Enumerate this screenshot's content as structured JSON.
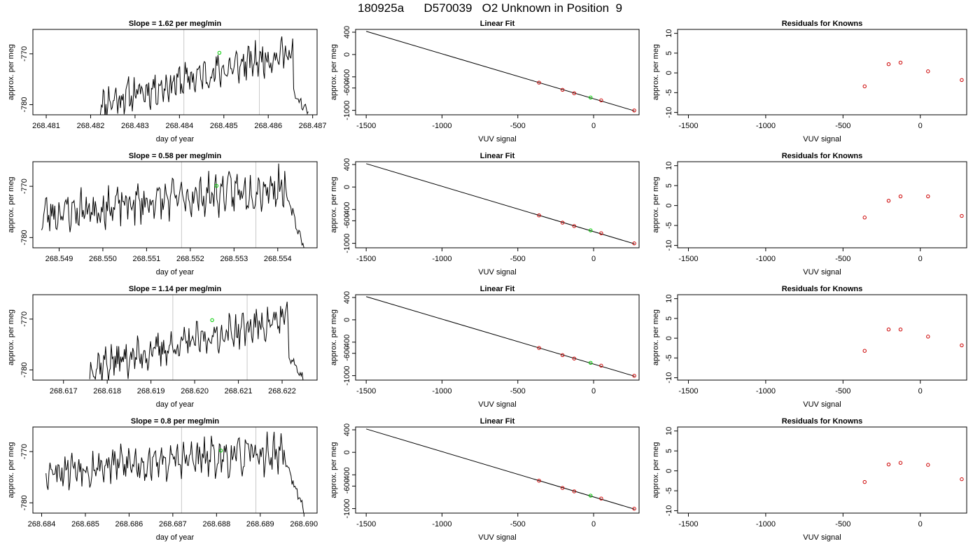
{
  "page": {
    "title": "180925a      D570039   O2 Unknown in Position  9"
  },
  "styles": {
    "trace_color": "#000000",
    "marker_unknown": "#00cc00",
    "marker_known": "#cc0000",
    "vline_color": "#c8c8c8"
  },
  "chart_data": [
    {
      "type": "line",
      "panel": "time-series",
      "row": 1,
      "title": "Slope =  1.62  per meg/min",
      "xlabel": "day of year",
      "ylabel": "approx. per meg",
      "xlim": [
        268.4807,
        268.4871
      ],
      "ylim": [
        -782,
        -765.2
      ],
      "xticks": [
        "268.481",
        "268.482",
        "268.483",
        "268.484",
        "268.485",
        "268.486",
        "268.487"
      ],
      "xtick_values": [
        268.481,
        268.482,
        268.483,
        268.484,
        268.485,
        268.486,
        268.487
      ],
      "yticks": [
        "-780",
        "-770"
      ],
      "ytick_values": [
        -780,
        -770
      ],
      "vlines": [
        268.4841,
        268.4858
      ],
      "marker": {
        "x": 268.4849,
        "y": -769.8
      },
      "trace": {
        "x_start": 268.4822,
        "x_end": 268.4869,
        "n": 230,
        "base_start": -779.8,
        "base_end": -768.6,
        "amp": 2.6,
        "seed": 11,
        "tail_start": -778.0,
        "tail_end": -781.5
      }
    },
    {
      "type": "line",
      "panel": "linear-fit",
      "row": 1,
      "title": "Linear Fit",
      "xlabel": "VUV signal",
      "ylabel": "approx. per meg",
      "xlim": [
        -1570,
        300
      ],
      "ylim": [
        -1080,
        450
      ],
      "xticks": [
        "-1500",
        "-1000",
        "-500",
        "0"
      ],
      "xtick_values": [
        -1500,
        -1000,
        -500,
        0
      ],
      "yticks": [
        "-1000",
        "-600",
        "-400",
        "0",
        "400"
      ],
      "ytick_values": [
        -1000,
        -600,
        -400,
        0,
        400
      ],
      "line": {
        "x": [
          -1500,
          270
        ],
        "y": [
          415,
          -1010
        ]
      },
      "knowns": {
        "x": [
          -360,
          -205,
          -128,
          50,
          268
        ],
        "y": [
          -504,
          -633,
          -694,
          -821,
          -1002
        ]
      },
      "unknown": {
        "x": [
          -20
        ],
        "y": [
          -770
        ]
      }
    },
    {
      "type": "scatter",
      "panel": "residuals",
      "row": 1,
      "title": "Residuals for Knowns",
      "xlabel": "VUV signal",
      "ylabel": "approx. per meg",
      "xlim": [
        -1570,
        300
      ],
      "ylim": [
        -10.6,
        11
      ],
      "xticks": [
        "-1500",
        "-1000",
        "-500",
        "0"
      ],
      "xtick_values": [
        -1500,
        -1000,
        -500,
        0
      ],
      "yticks": [
        "-10",
        "-5",
        "0",
        "5",
        "10"
      ],
      "ytick_values": [
        -10,
        -5,
        0,
        5,
        10
      ],
      "points": {
        "x": [
          -360,
          -205,
          -128,
          50,
          268
        ],
        "y": [
          -3.4,
          2.2,
          2.6,
          0.4,
          -1.8
        ]
      }
    },
    {
      "type": "line",
      "panel": "time-series",
      "row": 2,
      "title": "Slope =  0.58  per meg/min",
      "xlabel": "day of year",
      "ylabel": "approx. per meg",
      "xlim": [
        268.5484,
        268.5549
      ],
      "ylim": [
        -782,
        -765.2
      ],
      "xticks": [
        "268.549",
        "268.550",
        "268.551",
        "268.552",
        "268.553",
        "268.554"
      ],
      "xtick_values": [
        268.549,
        268.55,
        268.551,
        268.552,
        268.553,
        268.554
      ],
      "yticks": [
        "-780",
        "-770"
      ],
      "ytick_values": [
        -780,
        -770
      ],
      "vlines": [
        268.5518,
        268.5535
      ],
      "marker": {
        "x": 268.5526,
        "y": -769.9
      },
      "trace": {
        "x_start": 268.5486,
        "x_end": 268.5546,
        "n": 260,
        "base_start": -775.5,
        "base_end": -769.5,
        "amp": 3.0,
        "seed": 23,
        "tail_start": -771.5,
        "tail_end": -781.8
      }
    },
    {
      "type": "line",
      "panel": "linear-fit",
      "row": 2,
      "title": "Linear Fit",
      "xlabel": "VUV signal",
      "ylabel": "approx. per meg",
      "xlim": [
        -1570,
        300
      ],
      "ylim": [
        -1080,
        450
      ],
      "xticks": [
        "-1500",
        "-1000",
        "-500",
        "0"
      ],
      "xtick_values": [
        -1500,
        -1000,
        -500,
        0
      ],
      "yticks": [
        "-1000",
        "-600",
        "-400",
        "0",
        "400"
      ],
      "ytick_values": [
        -1000,
        -600,
        -400,
        0,
        400
      ],
      "line": {
        "x": [
          -1500,
          270
        ],
        "y": [
          415,
          -1010
        ]
      },
      "knowns": {
        "x": [
          -360,
          -205,
          -128,
          50,
          268
        ],
        "y": [
          -504,
          -633,
          -694,
          -821,
          -1002
        ]
      },
      "unknown": {
        "x": [
          -20
        ],
        "y": [
          -770
        ]
      }
    },
    {
      "type": "scatter",
      "panel": "residuals",
      "row": 2,
      "title": "Residuals for Knowns",
      "xlabel": "VUV signal",
      "ylabel": "approx. per meg",
      "xlim": [
        -1570,
        300
      ],
      "ylim": [
        -10.6,
        11
      ],
      "xticks": [
        "-1500",
        "-1000",
        "-500",
        "0"
      ],
      "xtick_values": [
        -1500,
        -1000,
        -500,
        0
      ],
      "yticks": [
        "-10",
        "-5",
        "0",
        "5",
        "10"
      ],
      "ytick_values": [
        -10,
        -5,
        0,
        5,
        10
      ],
      "points": {
        "x": [
          -360,
          -205,
          -128,
          50,
          268
        ],
        "y": [
          -3.0,
          1.2,
          2.3,
          2.3,
          -2.6
        ]
      }
    },
    {
      "type": "line",
      "panel": "time-series",
      "row": 3,
      "title": "Slope =  1.14  per meg/min",
      "xlabel": "day of year",
      "ylabel": "approx. per meg",
      "xlim": [
        268.6163,
        268.6228
      ],
      "ylim": [
        -782,
        -765.2
      ],
      "xticks": [
        "268.617",
        "268.618",
        "268.619",
        "268.620",
        "268.621",
        "268.622"
      ],
      "xtick_values": [
        268.617,
        268.618,
        268.619,
        268.62,
        268.621,
        268.622
      ],
      "yticks": [
        "-780",
        "-770"
      ],
      "ytick_values": [
        -780,
        -770
      ],
      "vlines": [
        268.6195,
        268.6212
      ],
      "marker": {
        "x": 268.6204,
        "y": -770.2
      },
      "trace": {
        "x_start": 268.6176,
        "x_end": 268.6225,
        "n": 230,
        "base_start": -779.5,
        "base_end": -769.0,
        "amp": 2.6,
        "seed": 37,
        "tail_start": -777.5,
        "tail_end": -781.8
      }
    },
    {
      "type": "line",
      "panel": "linear-fit",
      "row": 3,
      "title": "Linear Fit",
      "xlabel": "VUV signal",
      "ylabel": "approx. per meg",
      "xlim": [
        -1570,
        300
      ],
      "ylim": [
        -1080,
        450
      ],
      "xticks": [
        "-1500",
        "-1000",
        "-500",
        "0"
      ],
      "xtick_values": [
        -1500,
        -1000,
        -500,
        0
      ],
      "yticks": [
        "-1000",
        "-600",
        "-400",
        "0",
        "400"
      ],
      "ytick_values": [
        -1000,
        -600,
        -400,
        0,
        400
      ],
      "line": {
        "x": [
          -1500,
          270
        ],
        "y": [
          415,
          -1010
        ]
      },
      "knowns": {
        "x": [
          -360,
          -205,
          -128,
          50,
          268
        ],
        "y": [
          -504,
          -633,
          -694,
          -821,
          -1002
        ]
      },
      "unknown": {
        "x": [
          -20
        ],
        "y": [
          -770
        ]
      }
    },
    {
      "type": "scatter",
      "panel": "residuals",
      "row": 3,
      "title": "Residuals for Knowns",
      "xlabel": "VUV signal",
      "ylabel": "approx. per meg",
      "xlim": [
        -1570,
        300
      ],
      "ylim": [
        -10.6,
        11
      ],
      "xticks": [
        "-1500",
        "-1000",
        "-500",
        "0"
      ],
      "xtick_values": [
        -1500,
        -1000,
        -500,
        0
      ],
      "yticks": [
        "-10",
        "-5",
        "0",
        "5",
        "10"
      ],
      "ytick_values": [
        -10,
        -5,
        0,
        5,
        10
      ],
      "points": {
        "x": [
          -360,
          -205,
          -128,
          50,
          268
        ],
        "y": [
          -3.2,
          2.2,
          2.2,
          0.4,
          -1.8
        ]
      }
    },
    {
      "type": "line",
      "panel": "time-series",
      "row": 4,
      "title": "Slope =  0.8  per meg/min",
      "xlabel": "day of year",
      "ylabel": "approx. per meg",
      "xlim": [
        268.6838,
        268.6903
      ],
      "ylim": [
        -782,
        -765.2
      ],
      "xticks": [
        "268.684",
        "268.685",
        "268.686",
        "268.687",
        "268.688",
        "268.689",
        "268.690"
      ],
      "xtick_values": [
        268.684,
        268.685,
        268.686,
        268.687,
        268.688,
        268.689,
        268.69
      ],
      "yticks": [
        "-780",
        "-770"
      ],
      "ytick_values": [
        -780,
        -770
      ],
      "vlines": [
        268.6872,
        268.6889
      ],
      "marker": {
        "x": 268.6881,
        "y": -769.8
      },
      "trace": {
        "x_start": 268.6841,
        "x_end": 268.69,
        "n": 260,
        "base_start": -773.5,
        "base_end": -770.0,
        "amp": 2.9,
        "seed": 53,
        "tail_start": -772.0,
        "tail_end": -781.8
      }
    },
    {
      "type": "line",
      "panel": "linear-fit",
      "row": 4,
      "title": "Linear Fit",
      "xlabel": "VUV signal",
      "ylabel": "approx. per meg",
      "xlim": [
        -1570,
        300
      ],
      "ylim": [
        -1080,
        450
      ],
      "xticks": [
        "-1500",
        "-1000",
        "-500",
        "0"
      ],
      "xtick_values": [
        -1500,
        -1000,
        -500,
        0
      ],
      "yticks": [
        "-1000",
        "-600",
        "-400",
        "0",
        "400"
      ],
      "ytick_values": [
        -1000,
        -600,
        -400,
        0,
        400
      ],
      "line": {
        "x": [
          -1500,
          270
        ],
        "y": [
          415,
          -1010
        ]
      },
      "knowns": {
        "x": [
          -360,
          -205,
          -128,
          50,
          268
        ],
        "y": [
          -504,
          -633,
          -694,
          -821,
          -1002
        ]
      },
      "unknown": {
        "x": [
          -20
        ],
        "y": [
          -770
        ]
      }
    },
    {
      "type": "scatter",
      "panel": "residuals",
      "row": 4,
      "title": "Residuals for Knowns",
      "xlabel": "VUV signal",
      "ylabel": "approx. per meg",
      "xlim": [
        -1570,
        300
      ],
      "ylim": [
        -10.6,
        11
      ],
      "xticks": [
        "-1500",
        "-1000",
        "-500",
        "0"
      ],
      "xtick_values": [
        -1500,
        -1000,
        -500,
        0
      ],
      "yticks": [
        "-10",
        "-5",
        "0",
        "5",
        "10"
      ],
      "ytick_values": [
        -10,
        -5,
        0,
        5,
        10
      ],
      "points": {
        "x": [
          -360,
          -205,
          -128,
          50,
          268
        ],
        "y": [
          -2.8,
          1.6,
          2.0,
          1.5,
          -2.1
        ]
      }
    }
  ]
}
